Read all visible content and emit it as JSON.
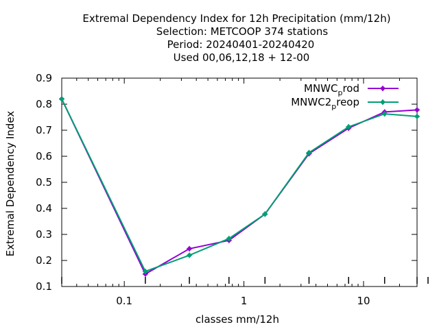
{
  "chart_data": {
    "type": "line",
    "title_lines": [
      "Extremal Dependency Index  for 12h Precipitation (mm/12h)",
      "Selection: METCOOP    374 stations",
      "Period: 20240401-20240420",
      "Used  00,06,12,18 + 12-00"
    ],
    "xlabel": "classes mm/12h",
    "ylabel": "Extremal Dependency Index",
    "x_scale": "log",
    "xlim": [
      0.03,
      28
    ],
    "ylim": [
      0.1,
      0.9
    ],
    "x_ticks": [
      0.1,
      1,
      10
    ],
    "x_tick_labels": [
      "0.1",
      "1",
      "10"
    ],
    "y_ticks": [
      0.1,
      0.2,
      0.3,
      0.4,
      0.5,
      0.6,
      0.7,
      0.8,
      0.9
    ],
    "y_tick_labels": [
      "0.1",
      "0.2",
      "0.3",
      "0.4",
      "0.5",
      "0.6",
      "0.7",
      "0.8",
      "0.9"
    ],
    "grid": false,
    "legend_position": "top-right",
    "x": [
      0.03,
      0.15,
      0.35,
      0.75,
      1.5,
      3.5,
      7.5,
      15,
      28
    ],
    "series": [
      {
        "name_main": "MNWC",
        "name_sub": "p",
        "name_rest": "rod",
        "color": "#9400d3",
        "values": [
          0.82,
          0.148,
          0.245,
          0.277,
          0.378,
          0.61,
          0.708,
          0.77,
          0.778
        ]
      },
      {
        "name_main": "MNWC2",
        "name_sub": "p",
        "name_rest": "reop",
        "color": "#009e73",
        "values": [
          0.82,
          0.158,
          0.22,
          0.284,
          0.378,
          0.614,
          0.713,
          0.763,
          0.753
        ]
      }
    ]
  }
}
